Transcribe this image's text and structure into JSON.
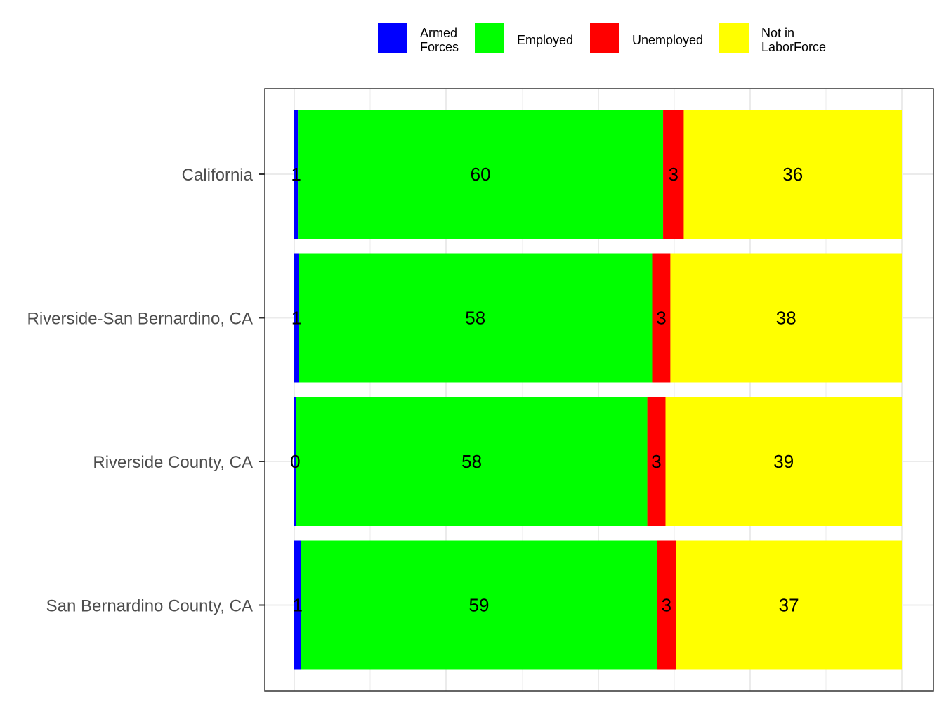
{
  "chart_data": {
    "type": "bar",
    "orientation": "horizontal",
    "stacked": true,
    "categories": [
      "California",
      "Riverside-San Bernardino, CA",
      "Riverside County, CA",
      "San Bernardino County, CA"
    ],
    "series": [
      {
        "name": "Armed\nForces",
        "color": "#0000ff",
        "values": [
          0.6,
          0.7,
          0.3,
          1.1
        ],
        "labels": [
          "1",
          "1",
          "0",
          "1"
        ]
      },
      {
        "name": "Employed",
        "color": "#00ff00",
        "values": [
          60.1,
          58.2,
          57.8,
          58.6
        ],
        "labels": [
          "60",
          "58",
          "58",
          "59"
        ]
      },
      {
        "name": "Unemployed",
        "color": "#ff0000",
        "values": [
          3.4,
          3.0,
          3.0,
          3.1
        ],
        "labels": [
          "3",
          "3",
          "3",
          "3"
        ]
      },
      {
        "name": "Not in\nLaborForce",
        "color": "#ffff00",
        "values": [
          35.9,
          38.1,
          38.9,
          37.2
        ],
        "labels": [
          "36",
          "38",
          "39",
          "37"
        ]
      }
    ],
    "xlim": [
      0,
      100
    ],
    "x_ticks_shown": false,
    "grid": true,
    "legend_position": "top",
    "title": "",
    "xlabel": "",
    "ylabel": ""
  }
}
